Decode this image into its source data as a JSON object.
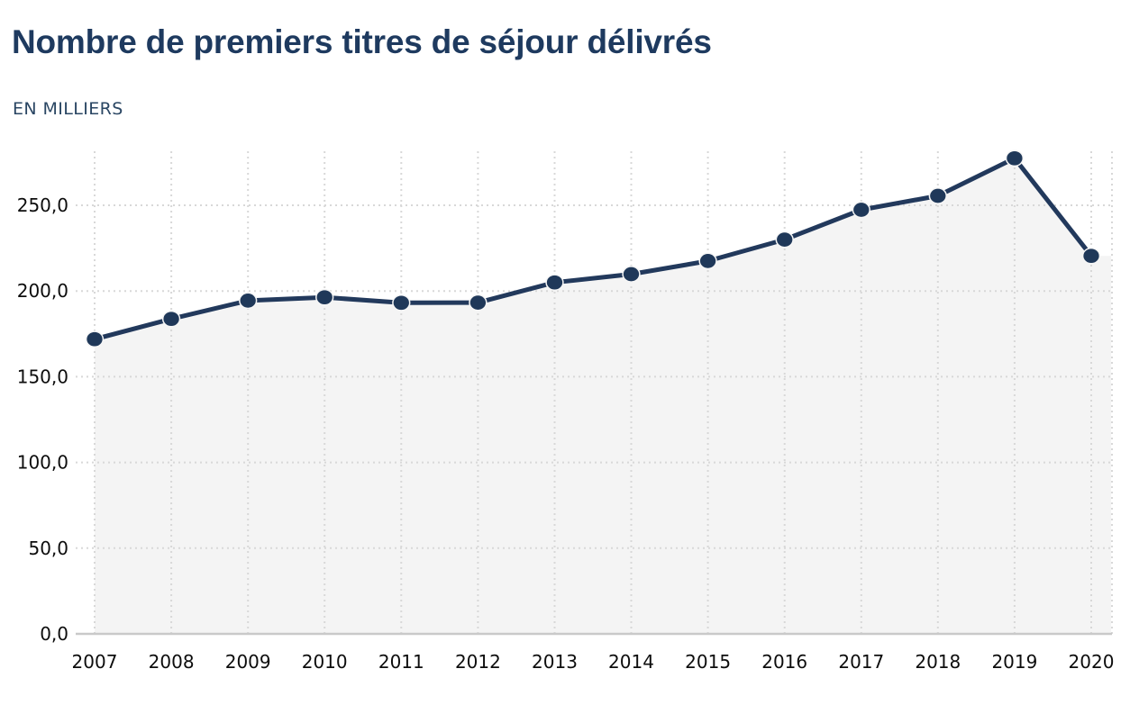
{
  "header": {
    "title": "Nombre de premiers titres de séjour délivrés",
    "subtitle": "EN MILLIERS"
  },
  "chart_data": {
    "type": "line",
    "title": "Nombre de premiers titres de séjour délivrés",
    "subtitle_unit": "EN MILLIERS",
    "categories": [
      "2007",
      "2008",
      "2009",
      "2010",
      "2011",
      "2012",
      "2013",
      "2014",
      "2015",
      "2016",
      "2017",
      "2018",
      "2019",
      "2020"
    ],
    "values": [
      171.9,
      183.7,
      194.4,
      196.3,
      193.1,
      193.2,
      205.0,
      209.8,
      217.5,
      230.0,
      247.4,
      255.5,
      277.4,
      220.5
    ],
    "xlabel": "",
    "ylabel": "",
    "ylim": [
      0,
      290
    ],
    "ytick_values": [
      0,
      50,
      100,
      150,
      200,
      250
    ],
    "ytick_labels": [
      "0,0",
      "50,0",
      "100,0",
      "150,0",
      "200,0",
      "250,0"
    ],
    "grid": true,
    "legend": false,
    "markers": true,
    "area_fill": true,
    "colors": {
      "line": "#22395c",
      "marker": "#1f3859",
      "marker_halo": "#f6f6f6",
      "area_fill": "#f4f4f4",
      "grid_dotted": "#d8d8d8",
      "axis_line": "#c9c9c9",
      "tick_text": "#0d0d0d",
      "title_text": "#1e3a5f",
      "subtitle_text": "#2a4663"
    }
  }
}
